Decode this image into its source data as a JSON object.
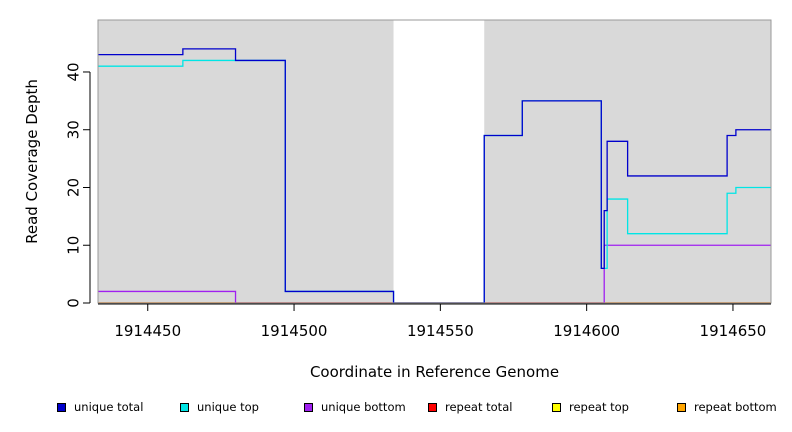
{
  "chart_data": {
    "type": "line",
    "title": "",
    "xlabel": "Coordinate in Reference Genome",
    "ylabel": "Read Coverage Depth",
    "xlim": [
      1914433,
      1914663
    ],
    "ylim": [
      0,
      49
    ],
    "x_ticks": [
      1914450,
      1914500,
      1914550,
      1914600,
      1914650
    ],
    "x_tick_labels": [
      "1914450",
      "1914500",
      "1914550",
      "1914600",
      "1914650"
    ],
    "y_ticks": [
      0,
      10,
      20,
      30,
      40
    ],
    "y_tick_labels": [
      "0",
      "10",
      "20",
      "30",
      "40"
    ],
    "shaded_regions": [
      [
        1914433,
        1914534
      ],
      [
        1914565,
        1914663
      ]
    ],
    "background_color": "#d9d9d9",
    "legend_position": "bottom",
    "series": [
      {
        "name": "unique total",
        "color": "#0000cc",
        "points": [
          [
            1914433,
            43
          ],
          [
            1914462,
            43
          ],
          [
            1914462,
            44
          ],
          [
            1914480,
            44
          ],
          [
            1914480,
            42
          ],
          [
            1914497,
            42
          ],
          [
            1914497,
            2
          ],
          [
            1914534,
            2
          ],
          [
            1914534,
            0
          ],
          [
            1914565,
            0
          ],
          [
            1914565,
            29
          ],
          [
            1914578,
            29
          ],
          [
            1914578,
            35
          ],
          [
            1914605,
            35
          ],
          [
            1914605,
            6
          ],
          [
            1914606,
            6
          ],
          [
            1914606,
            16
          ],
          [
            1914607,
            16
          ],
          [
            1914607,
            28
          ],
          [
            1914614,
            28
          ],
          [
            1914614,
            22
          ],
          [
            1914648,
            22
          ],
          [
            1914648,
            29
          ],
          [
            1914651,
            29
          ],
          [
            1914651,
            30
          ],
          [
            1914663,
            30
          ]
        ]
      },
      {
        "name": "unique top",
        "color": "#00e5e5",
        "points": [
          [
            1914433,
            41
          ],
          [
            1914462,
            41
          ],
          [
            1914462,
            42
          ],
          [
            1914497,
            42
          ],
          [
            1914497,
            2
          ],
          [
            1914534,
            2
          ],
          [
            1914534,
            0
          ],
          [
            1914565,
            0
          ],
          [
            1914565,
            29
          ],
          [
            1914578,
            29
          ],
          [
            1914578,
            35
          ],
          [
            1914605,
            35
          ],
          [
            1914605,
            6
          ],
          [
            1914607,
            6
          ],
          [
            1914607,
            18
          ],
          [
            1914614,
            18
          ],
          [
            1914614,
            12
          ],
          [
            1914648,
            12
          ],
          [
            1914648,
            19
          ],
          [
            1914651,
            19
          ],
          [
            1914651,
            20
          ],
          [
            1914663,
            20
          ]
        ]
      },
      {
        "name": "unique bottom",
        "color": "#a020f0",
        "points": [
          [
            1914433,
            2
          ],
          [
            1914480,
            2
          ],
          [
            1914480,
            0
          ],
          [
            1914606,
            0
          ],
          [
            1914606,
            10
          ],
          [
            1914663,
            10
          ]
        ]
      },
      {
        "name": "repeat total",
        "color": "#ff0000",
        "points": [
          [
            1914433,
            0
          ],
          [
            1914663,
            0
          ]
        ]
      },
      {
        "name": "repeat top",
        "color": "#ffff00",
        "points": [
          [
            1914433,
            0
          ],
          [
            1914663,
            0
          ]
        ]
      },
      {
        "name": "repeat bottom",
        "color": "#ffa500",
        "points": [
          [
            1914433,
            0
          ],
          [
            1914663,
            0
          ]
        ]
      }
    ]
  }
}
